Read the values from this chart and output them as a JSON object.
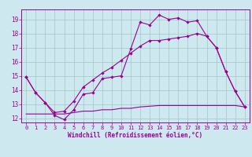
{
  "xlabel": "Windchill (Refroidissement éolien,°C)",
  "xlim": [
    -0.5,
    23.5
  ],
  "ylim": [
    11.7,
    19.7
  ],
  "xticks": [
    0,
    1,
    2,
    3,
    4,
    5,
    6,
    7,
    8,
    9,
    10,
    11,
    12,
    13,
    14,
    15,
    16,
    17,
    18,
    19,
    20,
    21,
    22,
    23
  ],
  "yticks": [
    12,
    13,
    14,
    15,
    16,
    17,
    18,
    19
  ],
  "bg_color": "#cde8ee",
  "grid_color": "#aacccc",
  "line_color": "#990099",
  "line1_x": [
    0,
    1,
    2,
    3,
    4,
    5,
    6,
    7,
    8,
    9,
    10,
    11,
    12,
    13,
    14,
    15,
    16,
    17,
    18,
    19,
    20,
    21,
    22,
    23
  ],
  "line1_y": [
    14.9,
    13.8,
    13.1,
    12.2,
    11.9,
    12.6,
    13.7,
    13.8,
    14.8,
    14.9,
    15.0,
    16.9,
    18.8,
    18.6,
    19.3,
    19.0,
    19.1,
    18.8,
    18.9,
    17.8,
    17.0,
    15.3,
    13.9,
    12.8
  ],
  "line2_x": [
    0,
    1,
    2,
    3,
    4,
    5,
    6,
    7,
    8,
    9,
    10,
    11,
    12,
    13,
    14,
    15,
    16,
    17,
    18,
    19,
    20,
    21,
    22,
    23
  ],
  "line2_y": [
    14.9,
    13.8,
    13.1,
    12.4,
    12.5,
    13.2,
    14.2,
    14.7,
    15.2,
    15.6,
    16.1,
    16.6,
    17.1,
    17.5,
    17.5,
    17.6,
    17.7,
    17.8,
    18.0,
    17.8,
    17.0,
    15.3,
    13.9,
    12.8
  ],
  "line3_x": [
    0,
    1,
    2,
    3,
    4,
    5,
    6,
    7,
    8,
    9,
    10,
    11,
    12,
    13,
    14,
    15,
    16,
    17,
    18,
    19,
    20,
    21,
    22,
    23
  ],
  "line3_y": [
    12.3,
    12.3,
    12.3,
    12.3,
    12.3,
    12.4,
    12.5,
    12.5,
    12.6,
    12.6,
    12.7,
    12.7,
    12.8,
    12.85,
    12.9,
    12.9,
    12.9,
    12.9,
    12.9,
    12.9,
    12.9,
    12.9,
    12.9,
    12.8
  ]
}
